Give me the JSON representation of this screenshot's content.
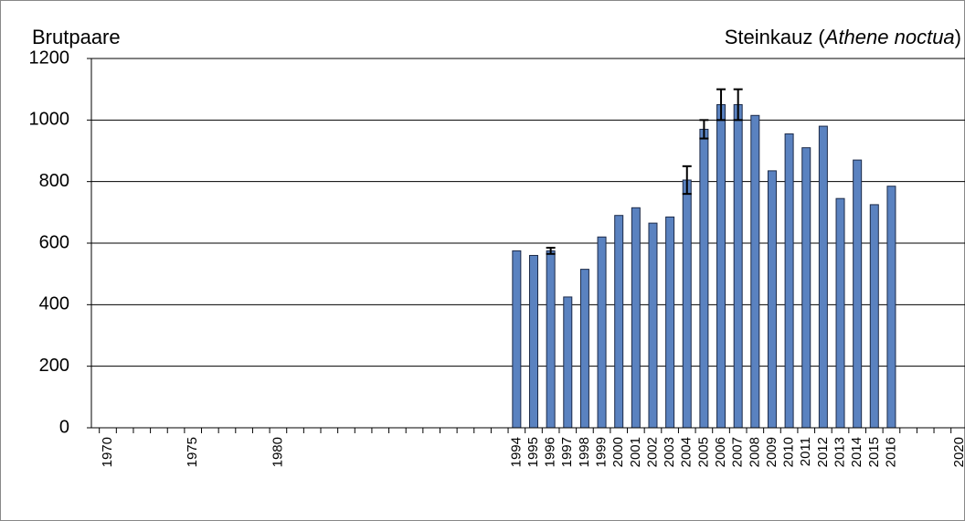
{
  "chart_data": {
    "type": "bar",
    "title": "Steinkauz (",
    "title_species": "Athene noctua",
    "title_end": ")",
    "y_label": "Brutpaare",
    "categories": [
      "1970",
      null,
      null,
      null,
      null,
      "1975",
      null,
      null,
      null,
      null,
      "1980",
      null,
      null,
      null,
      null,
      null,
      null,
      null,
      null,
      null,
      null,
      null,
      null,
      null,
      "1994",
      "1995",
      "1996",
      "1997",
      "1998",
      "1999",
      "2000",
      "2001",
      "2002",
      "2003",
      "2004",
      "2005",
      "2006",
      "2007",
      "2008",
      "2009",
      "2010",
      "2011",
      "2012",
      "2013",
      "2014",
      "2015",
      "2016",
      null,
      null,
      null,
      "2020"
    ],
    "values": [
      null,
      null,
      null,
      null,
      null,
      null,
      null,
      null,
      null,
      null,
      null,
      null,
      null,
      null,
      null,
      null,
      null,
      null,
      null,
      null,
      null,
      null,
      null,
      null,
      575,
      560,
      575,
      425,
      515,
      620,
      690,
      715,
      665,
      685,
      805,
      970,
      1050,
      1050,
      1015,
      835,
      955,
      910,
      980,
      745,
      870,
      725,
      785,
      null,
      null,
      null,
      null
    ],
    "errors": [
      null,
      null,
      null,
      null,
      null,
      null,
      null,
      null,
      null,
      null,
      null,
      null,
      null,
      null,
      null,
      null,
      null,
      null,
      null,
      null,
      null,
      null,
      null,
      null,
      null,
      null,
      10,
      null,
      null,
      null,
      null,
      null,
      null,
      null,
      45,
      30,
      50,
      50,
      null,
      null,
      null,
      null,
      null,
      null,
      null,
      null,
      null,
      null,
      null,
      null,
      null
    ],
    "color": "#5a82c0",
    "ylim": [
      0,
      1200
    ],
    "yticks": [
      0,
      200,
      400,
      600,
      800,
      1000,
      1200
    ],
    "grid": true
  }
}
